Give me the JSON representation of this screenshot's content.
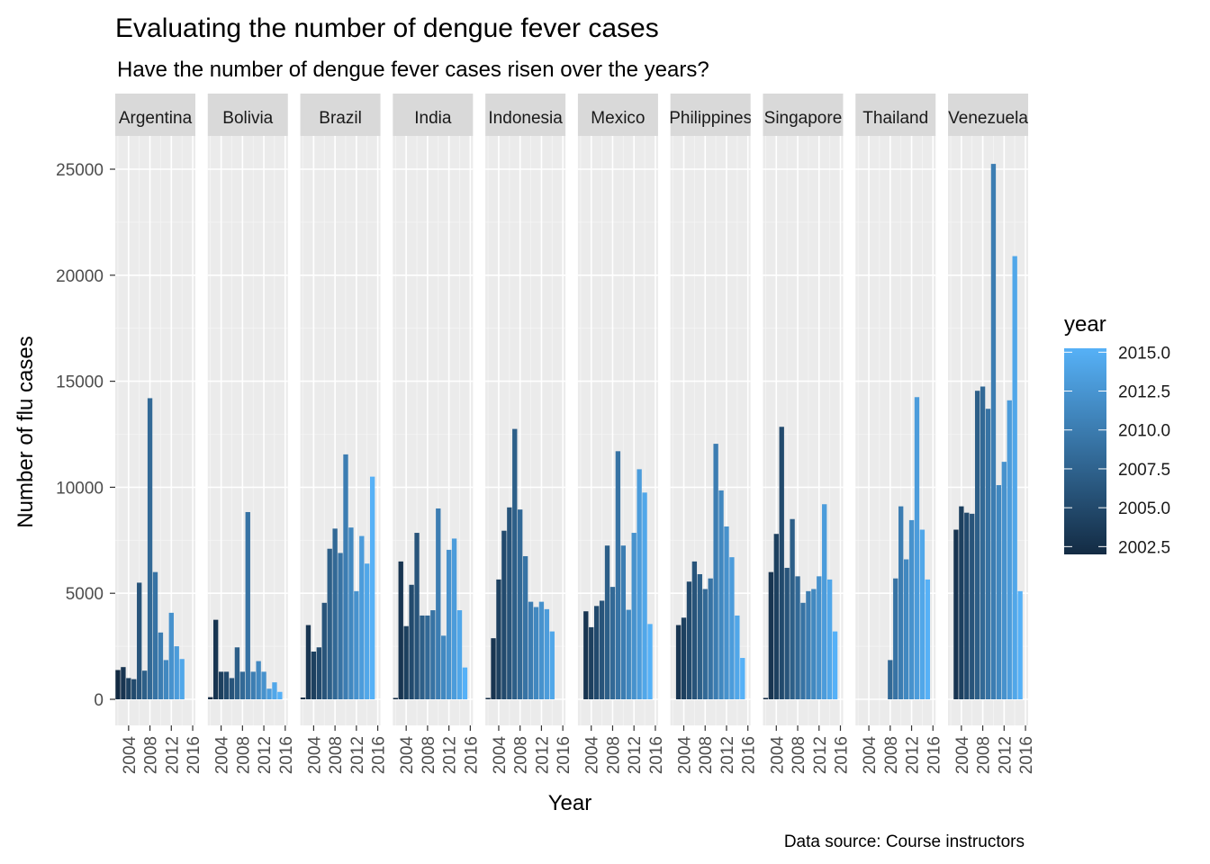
{
  "chart_data": {
    "type": "bar",
    "title": "Evaluating the number of dengue fever cases",
    "subtitle": "Have the number of dengue fever cases risen over the years?",
    "xlabel": "Year",
    "ylabel": "Number of flu cases",
    "caption": "Data source: Course instructors",
    "ylim": [
      -1200,
      26500
    ],
    "xlim": [
      2001.5,
      2016.5
    ],
    "y_ticks": [
      0,
      5000,
      10000,
      15000,
      20000,
      25000
    ],
    "x_ticks": [
      2004,
      2008,
      2012,
      2016
    ],
    "grid": true,
    "years": [
      2002,
      2003,
      2004,
      2005,
      2006,
      2007,
      2008,
      2009,
      2010,
      2011,
      2012,
      2013,
      2014,
      2015
    ],
    "facets": [
      {
        "name": "Argentina",
        "values": [
          1380,
          1520,
          1000,
          950,
          5500,
          1350,
          14200,
          6000,
          3150,
          1850,
          4080,
          2500,
          1900,
          null
        ]
      },
      {
        "name": "Bolivia",
        "values": [
          100,
          3750,
          1300,
          1300,
          1000,
          2450,
          1300,
          8830,
          1300,
          1800,
          1300,
          500,
          800,
          350
        ]
      },
      {
        "name": "Brazil",
        "values": [
          80,
          3500,
          2250,
          2450,
          4550,
          7100,
          8050,
          6900,
          11550,
          8100,
          5100,
          7700,
          6400,
          10500
        ]
      },
      {
        "name": "India",
        "values": [
          50,
          6500,
          3450,
          5400,
          7850,
          3950,
          3950,
          4200,
          9000,
          3000,
          7050,
          7580,
          4200,
          1500
        ]
      },
      {
        "name": "Indonesia",
        "values": [
          60,
          2880,
          5650,
          7950,
          9050,
          12750,
          8950,
          6750,
          4600,
          4350,
          4600,
          4250,
          3200,
          null
        ]
      },
      {
        "name": "Mexico",
        "values": [
          null,
          4150,
          3400,
          4400,
          4650,
          7250,
          5300,
          11700,
          7250,
          4220,
          7850,
          10850,
          9750,
          3550
        ]
      },
      {
        "name": "Philippines",
        "values": [
          null,
          3500,
          3850,
          5550,
          6500,
          5900,
          5200,
          5700,
          12050,
          9850,
          8150,
          6700,
          3950,
          1950
        ]
      },
      {
        "name": "Singapore",
        "values": [
          50,
          6000,
          7800,
          12850,
          6200,
          8500,
          5800,
          4550,
          5100,
          5200,
          5800,
          9200,
          5650,
          3200
        ]
      },
      {
        "name": "Thailand",
        "values": [
          null,
          null,
          null,
          null,
          null,
          null,
          1850,
          5700,
          9100,
          6600,
          8450,
          14250,
          8000,
          5650
        ]
      },
      {
        "name": "Venezuela",
        "values": [
          null,
          8000,
          9100,
          8800,
          8750,
          14550,
          14750,
          13700,
          25250,
          10100,
          11200,
          14100,
          20900,
          5100
        ]
      }
    ],
    "legend": {
      "title": "year",
      "position": "right",
      "ticks": [
        "2002.5",
        "2005.0",
        "2007.5",
        "2010.0",
        "2012.5",
        "2015.0"
      ],
      "range": [
        2002,
        2015
      ],
      "low_color": "#132B43",
      "high_color": "#56B1F7"
    },
    "colors": {
      "panel_bg": "#EBEBEB",
      "strip_bg": "#D9D9D9",
      "grid_major": "#FFFFFF",
      "grid_minor": "#F5F5F5"
    }
  }
}
